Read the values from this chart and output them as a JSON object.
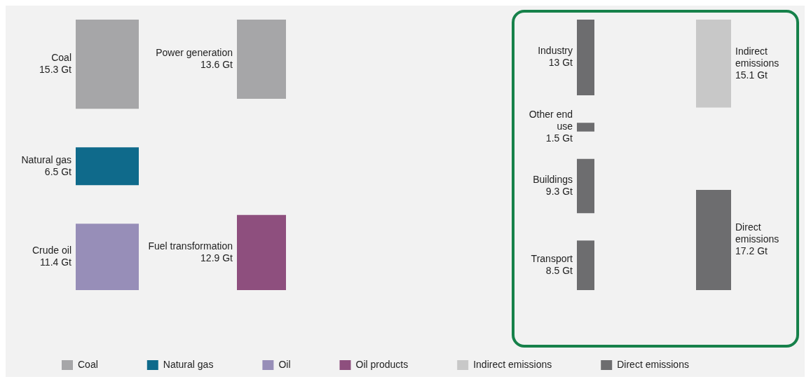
{
  "chart_data": {
    "type": "other",
    "categories": [
      "Coal",
      "Natural gas",
      "Crude oil",
      "Power generation",
      "Fuel transformation",
      "Industry",
      "Other end use",
      "Buildings",
      "Transport",
      "Indirect emissions",
      "Direct emissions"
    ],
    "series": [
      {
        "name": "Coal",
        "color": "#a6a6a8",
        "values": [
          15.3,
          null,
          null,
          13.6,
          null,
          null,
          null,
          null,
          null,
          null,
          null
        ],
        "value_labels": [
          "15.3 Gt",
          null,
          null,
          "13.6 Gt",
          null,
          null,
          null,
          null,
          null,
          null,
          null
        ]
      },
      {
        "name": "Natural gas",
        "color": "#0f6a8b",
        "values": [
          null,
          6.5,
          null,
          null,
          null,
          null,
          null,
          null,
          null,
          null,
          null
        ],
        "value_labels": [
          null,
          "6.5 Gt",
          null,
          null,
          null,
          null,
          null,
          null,
          null,
          null,
          null
        ]
      },
      {
        "name": "Oil",
        "color": "#978eb8",
        "values": [
          null,
          null,
          11.4,
          null,
          null,
          null,
          null,
          null,
          null,
          null,
          null
        ],
        "value_labels": [
          null,
          null,
          "11.4 Gt",
          null,
          null,
          null,
          null,
          null,
          null,
          null,
          null
        ]
      },
      {
        "name": "Oil products",
        "color": "#8e4f7e",
        "values": [
          null,
          null,
          null,
          null,
          12.9,
          null,
          null,
          null,
          null,
          null,
          null
        ],
        "value_labels": [
          null,
          null,
          null,
          null,
          "12.9 Gt",
          null,
          null,
          null,
          null,
          null,
          null
        ]
      },
      {
        "name": "Indirect emissions",
        "color": "#c8c8c8",
        "values": [
          null,
          null,
          null,
          null,
          null,
          null,
          null,
          null,
          null,
          15.1,
          null
        ],
        "value_labels": [
          null,
          null,
          null,
          null,
          null,
          null,
          null,
          null,
          null,
          "15.1 Gt",
          null
        ]
      },
      {
        "name": "Direct emissions",
        "color": "#6d6d6f",
        "values": [
          null,
          null,
          null,
          null,
          null,
          13,
          1.5,
          9.3,
          8.5,
          null,
          17.2
        ],
        "value_labels": [
          null,
          null,
          null,
          null,
          null,
          "13 Gt",
          "1.5 Gt",
          "9.3 Gt",
          "8.5 Gt",
          null,
          "17.2 Gt"
        ]
      }
    ],
    "legend": "bottom"
  }
}
